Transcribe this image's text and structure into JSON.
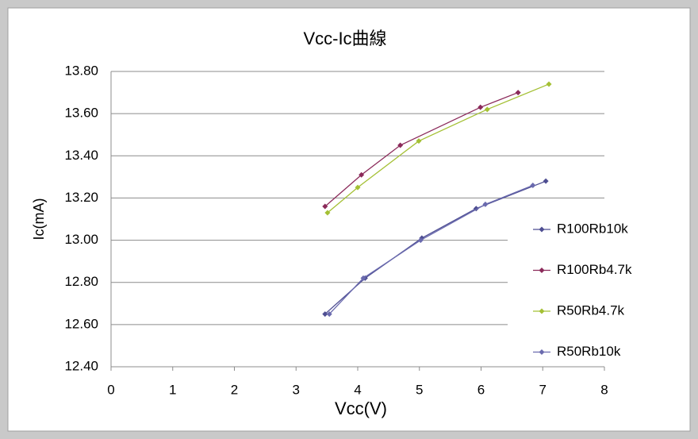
{
  "chart_data": {
    "type": "line-scatter",
    "title": "Vcc-Ic曲線",
    "x_label": "Vcc(V)",
    "y_label": "Ic(mA)",
    "xlim": [
      0,
      8
    ],
    "xticks": [
      0,
      1,
      2,
      3,
      4,
      5,
      6,
      7,
      8
    ],
    "ylim": [
      12.4,
      13.8
    ],
    "yticks": [
      {
        "value": 12.4,
        "label": "12.40"
      },
      {
        "value": 12.6,
        "label": "12.60"
      },
      {
        "value": 12.8,
        "label": "12.80"
      },
      {
        "value": 13.0,
        "label": "13.00"
      },
      {
        "value": 13.2,
        "label": "13.20"
      },
      {
        "value": 13.4,
        "label": "13.40"
      },
      {
        "value": 13.6,
        "label": "13.60"
      },
      {
        "value": 13.8,
        "label": "13.80"
      }
    ],
    "grid": true,
    "legend": "right",
    "series": [
      {
        "name": "R100Rb10k",
        "color": "#4e4e92",
        "x": [
          3.47,
          4.12,
          5.04,
          5.92,
          7.05
        ],
        "values": [
          12.65,
          12.82,
          13.01,
          13.15,
          13.28
        ]
      },
      {
        "name": "R100Rb4.7k",
        "color": "#8b2a5a",
        "x": [
          3.47,
          4.06,
          4.69,
          5.99,
          6.6
        ],
        "values": [
          13.16,
          13.31,
          13.45,
          13.63,
          13.7
        ]
      },
      {
        "name": "R50Rb4.7k",
        "color": "#a4c034",
        "x": [
          3.51,
          4.0,
          4.99,
          6.1,
          7.1
        ],
        "values": [
          13.13,
          13.25,
          13.47,
          13.62,
          13.74
        ]
      },
      {
        "name": "R50Rb10k",
        "color": "#6a6aae",
        "x": [
          3.54,
          4.09,
          5.02,
          6.07,
          6.84
        ],
        "values": [
          12.65,
          12.82,
          13.0,
          13.17,
          13.26
        ]
      }
    ]
  }
}
